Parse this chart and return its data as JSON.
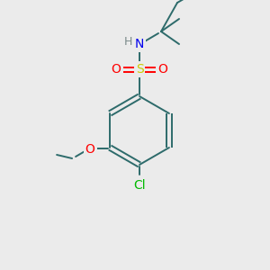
{
  "background_color": "#ebebeb",
  "bond_color": "#2d6b6b",
  "atom_colors": {
    "N": "#0000ee",
    "S": "#cccc00",
    "O": "#ff0000",
    "Cl": "#00bb00",
    "H": "#7a8a8a"
  },
  "figsize": [
    3.0,
    3.0
  ],
  "dpi": 100
}
